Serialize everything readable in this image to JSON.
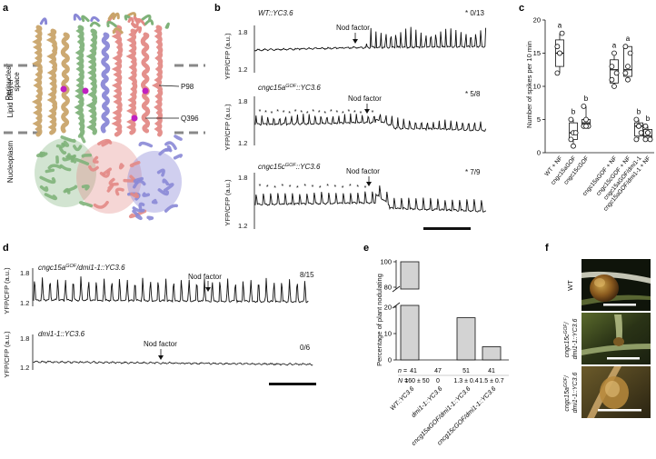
{
  "panels": {
    "a": {
      "letter": "a",
      "regions": [
        "Perinuclear space",
        "Lipid bilayer",
        "Nucleoplasm"
      ],
      "residues": [
        "P98",
        "Q396"
      ]
    },
    "b": {
      "letter": "b",
      "ylabel": "YFP/CFP (a.u.)",
      "marker": "Nod factor",
      "traces": [
        {
          "label": "WT::YC3.6",
          "ratio": "* 0/13",
          "y_top": "1.8",
          "y_bot": "1.2"
        },
        {
          "label": "cngc15aGOF::YC3.6",
          "ratio": "* 5/8",
          "y_top": "1.8",
          "y_bot": "1.2"
        },
        {
          "label": "cngc15cGOF::YC3.6",
          "ratio": "* 7/9",
          "y_top": "1.8",
          "y_bot": "1.2"
        }
      ]
    },
    "c": {
      "letter": "c",
      "ylabel": "Number of spikes per 10 min",
      "categories": [
        "WT + NF",
        "cngc15aGOF",
        "cngc15cGOF",
        "cngc15aGOF + NF",
        "cngc15cGOF + NF",
        "cngc15aGOF/dmi1-1",
        "cngc15aGOF/dmi1-1 + NF"
      ],
      "letters": [
        "a",
        "b",
        "b",
        "a",
        "a",
        "b",
        "b"
      ],
      "yticks": [
        "0",
        "5",
        "10",
        "15",
        "20"
      ]
    },
    "d": {
      "letter": "d",
      "ylabel": "YFP/CFP (a.u.)",
      "marker": "Nod factor",
      "traces": [
        {
          "label": "cngc15aGOF/dmi1-1::YC3.6",
          "ratio": "8/15",
          "y_top": "1.8",
          "y_bot": "1.2"
        },
        {
          "label": "dmi1-1::YC3.6",
          "ratio": "0/6",
          "y_top": "1.8",
          "y_bot": "1.2"
        }
      ]
    },
    "e": {
      "letter": "e",
      "ylabel": "Percentage of plant nodulating",
      "yticks": [
        "100",
        "80",
        "20",
        "10",
        "0"
      ],
      "categories": [
        "WT::YC3.6",
        "dmi1-1::YC3.6",
        "cncg15aGOF/dmi1-1::YC3.6",
        "cncg15cGOF/dmi1-1::YC3.6"
      ],
      "n_label": "n =",
      "N_label": "N =",
      "n_values": [
        "41",
        "47",
        "51",
        "41"
      ],
      "N_values": [
        "160 ± 50",
        "0",
        "1.3 ± 0.4",
        "1.5 ± 0.7"
      ]
    },
    "f": {
      "letter": "f",
      "rows": [
        "WT",
        "cngc15cGOF/dmi1-1::YC3.6",
        "cngc15aGOF/dmi1-1::YC3.6"
      ]
    }
  },
  "chart_data": [
    {
      "type": "box",
      "title": "",
      "ylabel": "Number of spikes per 10 min",
      "categories": [
        "WT + NF",
        "cngc15aGOF",
        "cngc15cGOF",
        "cngc15aGOF + NF",
        "cngc15cGOF + NF",
        "cngc15aGOF/dmi1-1",
        "cngc15aGOF/dmi1-1 + NF"
      ],
      "ylim": [
        0,
        20
      ],
      "points": [
        [
          16,
          15,
          18,
          12,
          15
        ],
        [
          2,
          3,
          3,
          5,
          1
        ],
        [
          4,
          5,
          4,
          7,
          4
        ],
        [
          11,
          15,
          12,
          13,
          10
        ],
        [
          16,
          11,
          15,
          12,
          13
        ],
        [
          5,
          4,
          3,
          2,
          4
        ],
        [
          4,
          3,
          2,
          2,
          3
        ]
      ],
      "boxes": [
        {
          "q1": 13,
          "median": 15,
          "q3": 17,
          "min": 12,
          "max": 18
        },
        {
          "q1": 2,
          "median": 3,
          "q3": 4.5,
          "min": 1,
          "max": 5
        },
        {
          "q1": 4,
          "median": 4.5,
          "q3": 5,
          "min": 4,
          "max": 7
        },
        {
          "q1": 10.5,
          "median": 12.5,
          "q3": 14,
          "min": 10,
          "max": 15
        },
        {
          "q1": 11.5,
          "median": 12.5,
          "q3": 16,
          "min": 11,
          "max": 16
        },
        {
          "q1": 2.5,
          "median": 4,
          "q3": 4.5,
          "min": 2,
          "max": 5
        },
        {
          "q1": 2,
          "median": 2.5,
          "q3": 3.5,
          "min": 2,
          "max": 4
        }
      ],
      "letters": [
        "a",
        "b",
        "b",
        "a",
        "a",
        "b",
        "b"
      ]
    },
    {
      "type": "bar",
      "title": "",
      "ylabel": "Percentage of plant nodulating",
      "categories": [
        "WT::YC3.6",
        "dmi1-1::YC3.6",
        "cncg15aGOF/dmi1-1::YC3.6",
        "cncg15cGOF/dmi1-1::YC3.6"
      ],
      "values": [
        100,
        0,
        16,
        5
      ],
      "axis_break": [
        20,
        80
      ]
    }
  ]
}
